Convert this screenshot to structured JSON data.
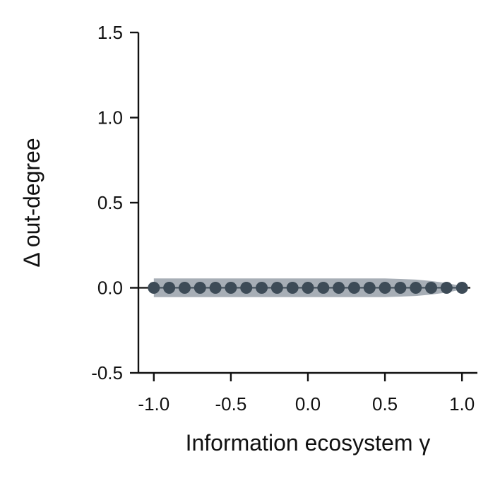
{
  "chart_data": {
    "type": "line",
    "xlabel": "Information ecosystem γ",
    "ylabel": "Δ out-degree",
    "xlim": [
      -1.1,
      1.1
    ],
    "ylim": [
      -0.5,
      1.5
    ],
    "xticks": [
      -1.0,
      -0.5,
      0.0,
      0.5,
      1.0
    ],
    "xtick_labels": [
      "-1.0",
      "-0.5",
      "0.0",
      "0.5",
      "1.0"
    ],
    "yticks": [
      -0.5,
      0.0,
      0.5,
      1.0,
      1.5
    ],
    "ytick_labels": [
      "-0.5",
      "0.0",
      "0.5",
      "1.0",
      "1.5"
    ],
    "grid": false,
    "reference_line": 0.0,
    "series": [
      {
        "color": "#3d4b57",
        "band_color": "#a7aeb6",
        "x": [
          -1.0,
          -0.9,
          -0.8,
          -0.7,
          -0.6,
          -0.5,
          -0.4,
          -0.3,
          -0.2,
          -0.1,
          0.0,
          0.1,
          0.2,
          0.3,
          0.4,
          0.5,
          0.6,
          0.7,
          0.8,
          0.9,
          1.0
        ],
        "y": [
          0,
          0,
          0,
          0,
          0,
          0,
          0,
          0,
          0,
          0,
          0,
          0,
          0,
          0,
          0,
          0,
          0,
          0,
          0,
          0,
          0
        ],
        "ci_halfwidth": [
          0.055,
          0.055,
          0.055,
          0.055,
          0.055,
          0.055,
          0.055,
          0.055,
          0.055,
          0.055,
          0.055,
          0.055,
          0.055,
          0.055,
          0.055,
          0.055,
          0.052,
          0.048,
          0.04,
          0.028,
          0.01
        ]
      }
    ]
  }
}
